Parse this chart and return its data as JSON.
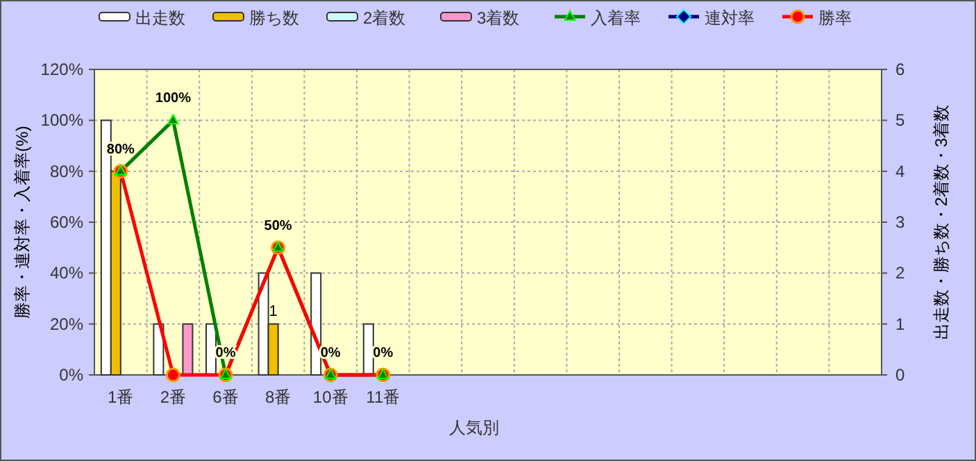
{
  "chart_data": {
    "type": "bar",
    "xlabel": "人気別",
    "ylabel": "勝率・連対率・入着率(%)",
    "y2label": "出走数・勝ち数・2着数・3着数",
    "categories": [
      "1番",
      "2番",
      "6番",
      "8番",
      "10番",
      "11番",
      null,
      null,
      null,
      null,
      null,
      null,
      null,
      null,
      null
    ],
    "series": [
      {
        "name": "出走数",
        "type": "bar",
        "axis": "y2",
        "color": "#ffffff",
        "values": [
          5,
          1,
          1,
          2,
          2,
          1,
          null,
          null,
          null,
          null,
          null,
          null,
          null,
          null,
          null
        ]
      },
      {
        "name": "勝ち数",
        "type": "bar",
        "axis": "y2",
        "color": "#f0c000",
        "values": [
          4,
          0,
          0,
          1,
          0,
          0,
          null,
          null,
          null,
          null,
          null,
          null,
          null,
          null,
          null
        ],
        "value_labels": [
          null,
          null,
          null,
          "1",
          null,
          null,
          null,
          null,
          null,
          null,
          null,
          null,
          null,
          null,
          null
        ]
      },
      {
        "name": "2着数",
        "type": "bar",
        "axis": "y2",
        "color": "#ccffff",
        "values": [
          0,
          0,
          0,
          0,
          0,
          0,
          null,
          null,
          null,
          null,
          null,
          null,
          null,
          null,
          null
        ]
      },
      {
        "name": "3着数",
        "type": "bar",
        "axis": "y2",
        "color": "#ff99cc",
        "values": [
          0,
          1,
          0,
          0,
          0,
          0,
          null,
          null,
          null,
          null,
          null,
          null,
          null,
          null,
          null
        ]
      },
      {
        "name": "入着率",
        "type": "line",
        "axis": "y",
        "color": "#008000",
        "marker": "triangle",
        "values": [
          80,
          100,
          0,
          50,
          0,
          0,
          null,
          null,
          null,
          null,
          null,
          null,
          null,
          null,
          null
        ],
        "value_labels": [
          "80%",
          "100%",
          "0%",
          "50%",
          "0%",
          "0%",
          null,
          null,
          null,
          null,
          null,
          null,
          null,
          null,
          null
        ]
      },
      {
        "name": "連対率",
        "type": "line",
        "axis": "y",
        "color": "#000080",
        "marker": "diamond",
        "values": [
          null,
          null,
          null,
          null,
          null,
          null,
          null,
          null,
          null,
          null,
          null,
          null,
          null,
          null,
          null
        ]
      },
      {
        "name": "勝率",
        "type": "line",
        "axis": "y",
        "color": "#ff0000",
        "marker": "circle",
        "values": [
          80,
          0,
          0,
          50,
          0,
          0,
          null,
          null,
          null,
          null,
          null,
          null,
          null,
          null,
          null
        ]
      }
    ],
    "ylim": [
      0,
      120
    ],
    "yticks": [
      {
        "value": 0,
        "label": "0%"
      },
      {
        "value": 20,
        "label": "20%"
      },
      {
        "value": 40,
        "label": "40%"
      },
      {
        "value": 60,
        "label": "60%"
      },
      {
        "value": 80,
        "label": "80%"
      },
      {
        "value": 100,
        "label": "100%"
      },
      {
        "value": 120,
        "label": "120%"
      }
    ],
    "y2lim": [
      0,
      6
    ],
    "y2ticks": [
      0,
      1,
      2,
      3,
      4,
      5,
      6
    ],
    "grid": true,
    "legend": "top"
  }
}
